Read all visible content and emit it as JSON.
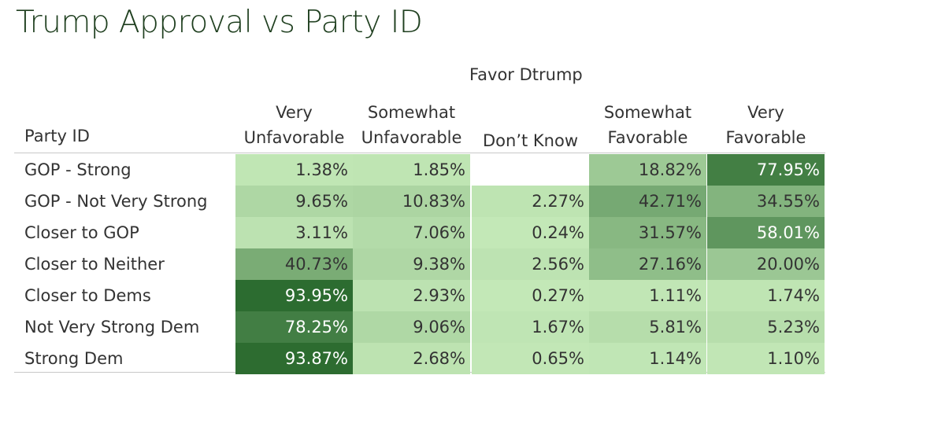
{
  "chart_data": {
    "type": "heatmap",
    "title": "Trump Approval vs Party ID",
    "column_group_label": "Favor Dtrump",
    "row_axis_label": "Party ID",
    "columns": [
      {
        "line1": "Very",
        "line2": "Unfavorable"
      },
      {
        "line1": "Somewhat",
        "line2": "Unfavorable"
      },
      {
        "line1": "",
        "line2": "Don’t Know"
      },
      {
        "line1": "Somewhat",
        "line2": "Favorable"
      },
      {
        "line1": "Very",
        "line2": "Favorable"
      }
    ],
    "rows": [
      "GOP - Strong",
      "GOP - Not Very Strong",
      "Closer to GOP",
      "Closer to Neither",
      "Closer to Dems",
      "Not Very Strong Dem",
      "Strong Dem"
    ],
    "values": [
      [
        1.38,
        1.85,
        null,
        18.82,
        77.95
      ],
      [
        9.65,
        10.83,
        2.27,
        42.71,
        34.55
      ],
      [
        3.11,
        7.06,
        0.24,
        31.57,
        58.01
      ],
      [
        40.73,
        9.38,
        2.56,
        27.16,
        20.0
      ],
      [
        93.95,
        2.93,
        0.27,
        1.11,
        1.74
      ],
      [
        78.25,
        9.06,
        1.67,
        5.81,
        5.23
      ],
      [
        93.87,
        2.68,
        0.65,
        1.14,
        1.1
      ]
    ],
    "labels": [
      [
        "1.38%",
        "1.85%",
        "",
        "18.82%",
        "77.95%"
      ],
      [
        "9.65%",
        "10.83%",
        "2.27%",
        "42.71%",
        "34.55%"
      ],
      [
        "3.11%",
        "7.06%",
        "0.24%",
        "31.57%",
        "58.01%"
      ],
      [
        "40.73%",
        "9.38%",
        "2.56%",
        "27.16%",
        "20.00%"
      ],
      [
        "93.95%",
        "2.93%",
        "0.27%",
        "1.11%",
        "1.74%"
      ],
      [
        "78.25%",
        "9.06%",
        "1.67%",
        "5.81%",
        "5.23%"
      ],
      [
        "93.87%",
        "2.68%",
        "0.65%",
        "1.14%",
        "1.10%"
      ]
    ],
    "color_scale": {
      "low": "#c4e9b8",
      "high": "#2b6b2f"
    }
  }
}
